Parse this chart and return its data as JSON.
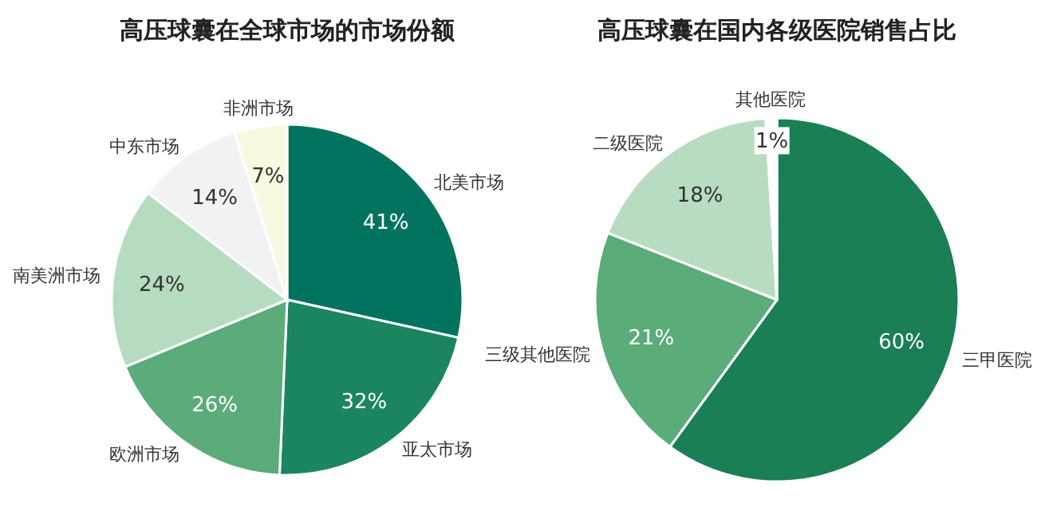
{
  "chart_data": [
    {
      "type": "pie",
      "title": "高压球囊在全球市场的市场份额",
      "categories": [
        "北美市场",
        "亚太市场",
        "欧洲市场",
        "南美洲市场",
        "中东市场",
        "非洲市场"
      ],
      "values": [
        41,
        32,
        26,
        24,
        14,
        7
      ],
      "colors": [
        "#00735f",
        "#1b8560",
        "#5bab7b",
        "#b6dcbf",
        "#f2f2f2",
        "#fbf8e2"
      ],
      "value_labels": [
        "41%",
        "32%",
        "26%",
        "24%",
        "14%",
        "7%"
      ]
    },
    {
      "type": "pie",
      "title": "高压球囊在国内各级医院销售占比",
      "categories": [
        "三甲医院",
        "三级其他医院",
        "二级医院",
        "其他医院"
      ],
      "values": [
        60,
        21,
        18,
        1
      ],
      "colors": [
        "#1a7f55",
        "#5aac79",
        "#b8dcc0",
        "#ffffff"
      ],
      "value_labels": [
        "60%",
        "21%",
        "18%",
        "1%"
      ]
    }
  ]
}
